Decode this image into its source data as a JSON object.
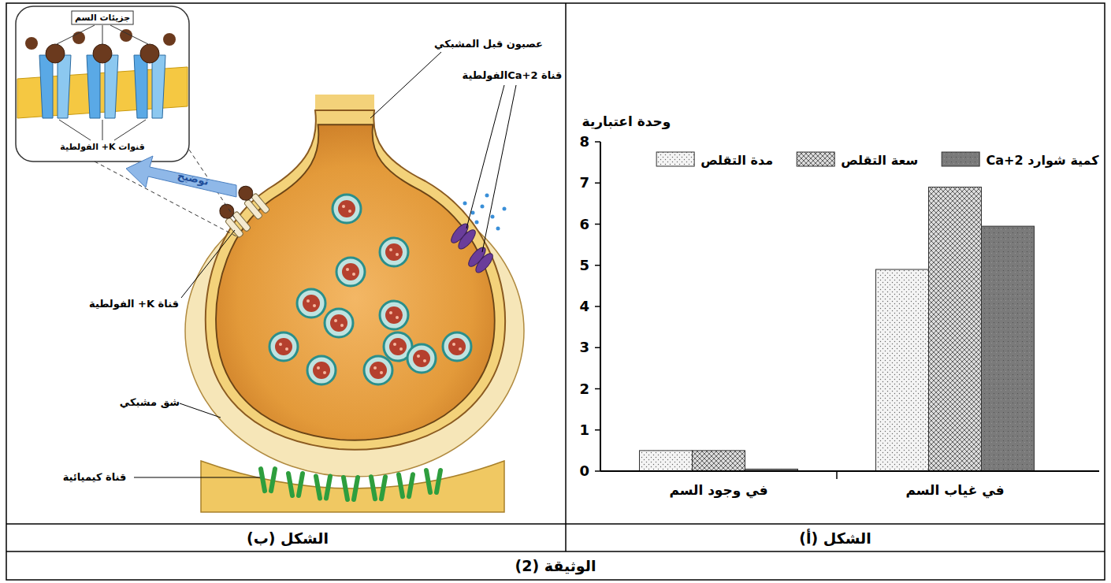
{
  "chart_data": {
    "type": "bar",
    "y_label": "وحدة اعتبارية",
    "categories": [
      "في وجود السم",
      "في غياب السم"
    ],
    "series": [
      {
        "name": "مدة التقلص",
        "color": "#f4f4f4",
        "values": [
          0.5,
          4.9
        ]
      },
      {
        "name": "سعة التقلص",
        "color": "#dcdcdc",
        "values": [
          0.5,
          6.9
        ]
      },
      {
        "name": "كمية شوارد Ca+2",
        "color": "#7a7a7a",
        "values": [
          0.05,
          5.95
        ]
      }
    ],
    "ylim": [
      0,
      8
    ],
    "yticks": [
      0,
      1,
      2,
      3,
      4,
      5,
      6,
      7,
      8
    ],
    "legend": "top",
    "grid": false
  },
  "document": {
    "captions": {
      "figure_b": "الشكل (ب)",
      "figure_a": "الشكل (أ)",
      "document": "الوثيقة (2)"
    },
    "diagram": {
      "toxin_molecules": "جزيئات السم",
      "k_channels_inset": "قنوات K+ الفولطية",
      "zoom": "توضيح",
      "presynaptic_neuron": "عصبون قبل المشبكي",
      "ca_channel": "قناة Ca+2الفولطية",
      "k_channel": "قناة K+ الفولطية",
      "synaptic_cleft": "شق مشبكي",
      "chemical_channel": "قناة كيميائية"
    }
  }
}
